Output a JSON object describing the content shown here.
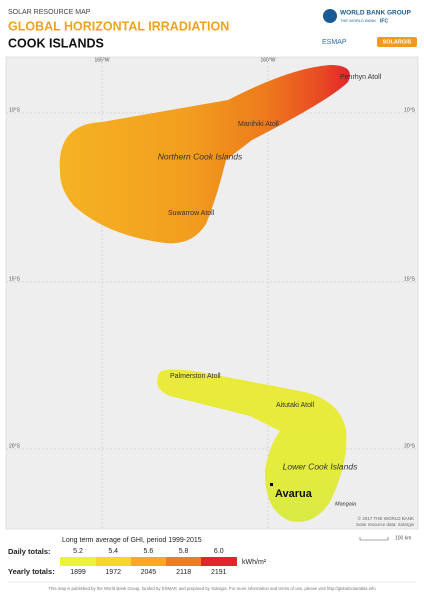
{
  "header": {
    "kicker": "SOLAR RESOURCE MAP",
    "title": "GLOBAL HORIZONTAL IRRADIATION",
    "subtitle": "COOK ISLANDS"
  },
  "logos": {
    "wbg": "WORLD BANK GROUP",
    "wb": "THE WORLD BANK",
    "ifc": "IFC",
    "esmap": "ESMAP",
    "solargis": "SOLARGIS"
  },
  "graticule": {
    "lon": [
      "165°W",
      "160°W"
    ],
    "lat": [
      "10°S",
      "15°S",
      "20°S"
    ]
  },
  "places": {
    "penrhyn": "Penrhyn Atoll",
    "manihiki": "Manihiki Atoll",
    "northern": "Northern Cook Islands",
    "suwarrow": "Suwarrow Atoll",
    "palmerston": "Palmerston Atoll",
    "aitutaki": "Aitutaki Atoll",
    "lower": "Lower Cook Islands",
    "avarua": "Avarua",
    "mangaia": "Mangaia"
  },
  "credits": {
    "copyright": "© 2017 THE WORLD BANK",
    "data": "Solar resource data: Solargis",
    "scale": "100 km"
  },
  "legend": {
    "title": "Long term average of GHI, period 1999-2015",
    "daily_label": "Daily totals:",
    "daily": [
      5.2,
      5.4,
      5.6,
      5.8,
      6.0
    ],
    "daily_labels": [
      "5.2",
      "5.4",
      "5.6",
      "5.8",
      "6.0"
    ],
    "unit": "kWh/m²",
    "yearly_label": "Yearly totals:",
    "yearly": [
      1899,
      1972,
      2045,
      2118,
      2191
    ]
  },
  "footer": "This map is published by the World Bank Group, funded by ESMAP, and prepared by Solargis. For more information and terms of use, please visit http://globalsolaratlas.info"
}
